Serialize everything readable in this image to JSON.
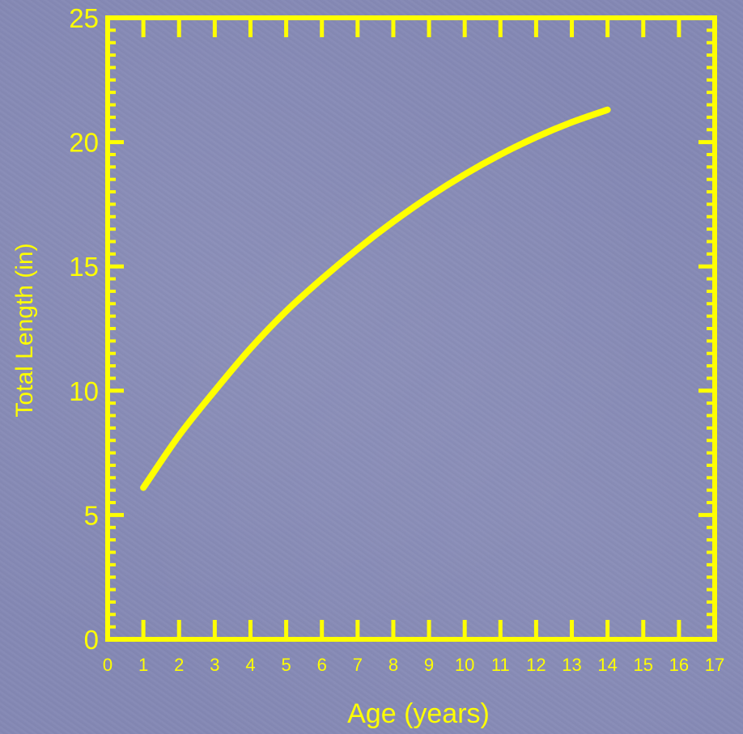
{
  "colors": {
    "background": "#8488b4",
    "accent": "#ffff00"
  },
  "chart_data": {
    "type": "line",
    "title": "",
    "xlabel": "Age (years)",
    "ylabel": "Total Length (in)",
    "xlim": [
      0,
      17
    ],
    "ylim": [
      0,
      25
    ],
    "x_ticks": [
      "0",
      "1",
      "2",
      "3",
      "4",
      "5",
      "6",
      "7",
      "8",
      "9",
      "10",
      "11",
      "12",
      "13",
      "14",
      "15",
      "16",
      "17"
    ],
    "y_ticks": [
      "0",
      "5",
      "10",
      "15",
      "20",
      "25"
    ],
    "grid": false,
    "legend": "none",
    "series": [
      {
        "x": [
          1,
          2,
          3,
          4,
          5,
          6,
          7,
          8,
          9,
          10,
          11,
          12,
          13,
          14
        ],
        "y": [
          6.1,
          8.2,
          10.0,
          11.7,
          13.2,
          14.5,
          15.7,
          16.8,
          17.8,
          18.7,
          19.5,
          20.2,
          20.8,
          21.3
        ]
      }
    ]
  }
}
